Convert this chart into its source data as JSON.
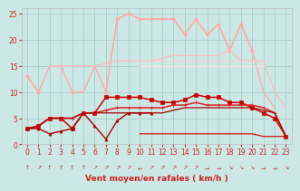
{
  "bg_color": "#cce8e4",
  "grid_color": "#aacccc",
  "xlabel": "Vent moyen/en rafales ( km/h )",
  "xlim": [
    -0.5,
    23.5
  ],
  "ylim": [
    0,
    26
  ],
  "yticks": [
    0,
    5,
    10,
    15,
    20,
    25
  ],
  "xticks": [
    0,
    1,
    2,
    3,
    4,
    5,
    6,
    7,
    8,
    9,
    10,
    11,
    12,
    13,
    14,
    15,
    16,
    17,
    18,
    19,
    20,
    21,
    22,
    23
  ],
  "series": [
    {
      "label": "rafales_max_dots",
      "color": "#ffaaaa",
      "marker": "D",
      "markersize": 2.0,
      "linewidth": 1.0,
      "y": [
        13,
        10,
        null,
        null,
        10,
        null,
        null,
        10,
        24,
        25,
        24,
        24,
        24,
        24,
        21,
        24,
        21,
        23,
        18,
        23,
        18,
        null,
        null,
        null
      ]
    },
    {
      "label": "rafales_max_line",
      "color": "#ffaaaa",
      "marker": null,
      "markersize": 0,
      "linewidth": 1.0,
      "y": [
        13,
        10,
        15,
        15,
        10,
        10,
        15,
        10,
        24,
        25,
        24,
        24,
        24,
        24,
        21,
        24,
        21,
        23,
        18,
        23,
        18,
        10,
        7,
        null
      ]
    },
    {
      "label": "rafales_avg",
      "color": "#ffbbbb",
      "marker": null,
      "markersize": 0,
      "linewidth": 0.9,
      "y": [
        null,
        null,
        15,
        15,
        15,
        15,
        15,
        15.5,
        16,
        16,
        16,
        16,
        16.5,
        17,
        17,
        17,
        17,
        17,
        18,
        16,
        16,
        16,
        10,
        7
      ]
    },
    {
      "label": "vent_avg_high",
      "color": "#ffcccc",
      "marker": null,
      "markersize": 0,
      "linewidth": 0.8,
      "y": [
        null,
        null,
        null,
        null,
        null,
        null,
        null,
        null,
        null,
        null,
        16,
        16,
        16,
        16,
        16,
        16,
        16,
        16,
        16,
        16,
        16,
        16,
        null,
        null
      ]
    },
    {
      "label": "vent_avg_mid",
      "color": "#ffdddd",
      "marker": null,
      "markersize": 0,
      "linewidth": 0.8,
      "y": [
        null,
        null,
        null,
        null,
        null,
        null,
        null,
        null,
        null,
        null,
        15,
        15,
        15,
        15,
        15,
        15,
        15,
        15,
        15,
        15,
        15,
        15,
        null,
        null
      ]
    },
    {
      "label": "red_line1",
      "color": "#cc0000",
      "marker": "s",
      "markersize": 2.2,
      "linewidth": 1.1,
      "y": [
        3,
        3.5,
        5,
        5,
        3,
        6,
        6,
        9,
        9,
        9,
        9,
        8.5,
        8,
        8,
        8.5,
        9.5,
        9,
        9,
        8,
        8,
        7,
        6,
        5,
        1.5
      ]
    },
    {
      "label": "red_line2",
      "color": "#dd2222",
      "marker": "+",
      "markersize": 3.0,
      "linewidth": 1.1,
      "y": [
        3,
        3.5,
        5,
        5,
        5,
        6,
        6,
        6.5,
        7,
        7,
        7,
        7,
        7,
        7.5,
        7.5,
        8,
        7.5,
        7.5,
        7.5,
        7.5,
        7.5,
        7,
        6,
        1.5
      ]
    },
    {
      "label": "dark_red_flat",
      "color": "#aa0000",
      "marker": null,
      "markersize": 0,
      "linewidth": 0.9,
      "y": [
        3,
        3.5,
        5,
        5,
        5,
        6,
        6,
        6,
        6,
        6,
        6,
        6,
        6,
        6.5,
        7,
        7,
        7,
        7,
        7,
        7,
        7,
        6.5,
        6,
        1.5
      ]
    },
    {
      "label": "dark_red_low",
      "color": "#aa0000",
      "marker": "^",
      "markersize": 2.2,
      "linewidth": 1.0,
      "y": [
        3,
        3,
        2,
        2.5,
        3,
        6,
        3.5,
        1,
        4.5,
        6,
        6,
        6,
        null,
        null,
        null,
        null,
        null,
        null,
        null,
        null,
        null,
        null,
        null,
        null
      ]
    },
    {
      "label": "flat_zero",
      "color": "#cc0000",
      "marker": null,
      "markersize": 0,
      "linewidth": 0.8,
      "y": [
        null,
        null,
        null,
        null,
        null,
        null,
        null,
        null,
        null,
        null,
        2,
        2,
        2,
        2,
        2,
        2,
        2,
        2,
        2,
        2,
        2,
        1.5,
        1.5,
        1.5
      ]
    }
  ],
  "arrow_chars": [
    "↑",
    "↗",
    "↑",
    "↑",
    "↑",
    "↑",
    "↗",
    "↗",
    "↗",
    "↗",
    "←",
    "↗",
    "↗",
    "↗",
    "↗",
    "↗",
    "→",
    "→",
    "↘",
    "↘",
    "↘",
    "→",
    "→",
    "↘"
  ],
  "axis_fontsize": 6.5,
  "tick_fontsize": 5.5,
  "tick_color": "#cc2222",
  "label_color": "#cc2222"
}
